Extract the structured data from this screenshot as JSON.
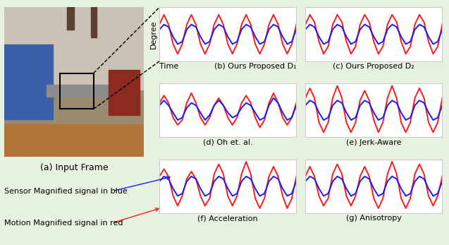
{
  "panel_a": {
    "caption": "(a) Input Frame"
  },
  "legend_notes": [
    {
      "text": "Sensor Magnified signal in blue",
      "color": "#1a1aff"
    },
    {
      "text": "Motion Magnified signal in red",
      "color": "#ff1a1a"
    }
  ],
  "chart_data": [
    {
      "type": "line",
      "title": "(b) Ours Proposed D₁",
      "x_label": "Time",
      "y_label": "Degree",
      "x": [
        0,
        1,
        2,
        3,
        4,
        5,
        6,
        7,
        8,
        9,
        10,
        11,
        12,
        13,
        14,
        15,
        16,
        17,
        18,
        19,
        20,
        21,
        22,
        23,
        24,
        25,
        26,
        27,
        28,
        29,
        30
      ],
      "xlim": [
        0,
        30
      ],
      "ylim": [
        -11,
        11
      ],
      "tick_labels": false,
      "series": [
        {
          "color": "#ff1a1a",
          "values": [
            4,
            8,
            4,
            -4,
            -8,
            -4,
            4,
            8,
            4,
            -4,
            -8,
            -4,
            4,
            8,
            4,
            -4,
            -8,
            -4,
            4,
            8,
            4,
            -4,
            -8,
            -4,
            4,
            8,
            4,
            -4,
            -8,
            -4,
            4
          ]
        },
        {
          "color": "#1a1aff",
          "values": [
            2,
            4,
            3,
            -1,
            -4,
            -3,
            2,
            4,
            3,
            -1,
            -4,
            -3,
            2,
            4,
            3,
            -1,
            -4,
            -3,
            2,
            4,
            3,
            -1,
            -4,
            -3,
            2,
            4,
            3,
            -1,
            -4,
            -3,
            2
          ]
        }
      ]
    },
    {
      "type": "line",
      "title": "(c) Ours Proposed D₂",
      "x": [
        0,
        1,
        2,
        3,
        4,
        5,
        6,
        7,
        8,
        9,
        10,
        11,
        12,
        13,
        14,
        15,
        16,
        17,
        18,
        19,
        20,
        21,
        22,
        23,
        24,
        25,
        26,
        27,
        28,
        29,
        30
      ],
      "xlim": [
        0,
        30
      ],
      "ylim": [
        -11,
        11
      ],
      "tick_labels": false,
      "series": [
        {
          "color": "#ff1a1a",
          "values": [
            4,
            8,
            5,
            -3,
            -8,
            -5,
            4,
            8,
            5,
            -3,
            -8,
            -5,
            4,
            8,
            5,
            -3,
            -8,
            -5,
            4,
            8,
            5,
            -3,
            -8,
            -5,
            4,
            8,
            5,
            -3,
            -8,
            -5,
            4
          ]
        },
        {
          "color": "#1a1aff",
          "values": [
            2,
            4,
            3,
            -1,
            -4,
            -3,
            2,
            4,
            3,
            -1,
            -4,
            -3,
            2,
            4,
            3,
            -1,
            -4,
            -3,
            2,
            4,
            3,
            -1,
            -4,
            -3,
            2,
            4,
            3,
            -1,
            -4,
            -3,
            2
          ]
        }
      ]
    },
    {
      "type": "line",
      "title": "(d) Oh et. al.",
      "x": [
        0,
        1,
        2,
        3,
        4,
        5,
        6,
        7,
        8,
        9,
        10,
        11,
        12,
        13,
        14,
        15,
        16,
        17,
        18,
        19,
        20,
        21,
        22,
        23,
        24,
        25,
        26,
        27,
        28,
        29,
        30
      ],
      "xlim": [
        0,
        30
      ],
      "ylim": [
        -11,
        11
      ],
      "tick_labels": false,
      "series": [
        {
          "color": "#ff1a1a",
          "values": [
            3,
            6,
            3,
            -3,
            -6,
            -4,
            3,
            7,
            3,
            -3,
            -6,
            -3,
            2,
            5,
            2,
            -3,
            -6,
            -3,
            3,
            6,
            3,
            -3,
            -7,
            -4,
            3,
            7,
            3,
            -3,
            -6,
            -3,
            3
          ]
        },
        {
          "color": "#1a1aff",
          "values": [
            2,
            4,
            2,
            -1,
            -4,
            -3,
            1,
            3,
            2,
            -1,
            -4,
            -2,
            2,
            4,
            2,
            -1,
            -3,
            -2,
            1,
            3,
            2,
            -1,
            -4,
            -3,
            2,
            5,
            3,
            -1,
            -4,
            -3,
            2
          ]
        }
      ]
    },
    {
      "type": "line",
      "title": "(e) Jerk-Aware",
      "x": [
        0,
        1,
        2,
        3,
        4,
        5,
        6,
        7,
        8,
        9,
        10,
        11,
        12,
        13,
        14,
        15,
        16,
        17,
        18,
        19,
        20,
        21,
        22,
        23,
        24,
        25,
        26,
        27,
        28,
        29,
        30
      ],
      "xlim": [
        0,
        30
      ],
      "ylim": [
        -11,
        11
      ],
      "tick_labels": false,
      "series": [
        {
          "color": "#ff1a1a",
          "values": [
            5,
            9,
            5,
            -5,
            -9,
            -5,
            5,
            10,
            5,
            -5,
            -9,
            -5,
            4,
            8,
            4,
            -4,
            -9,
            -5,
            5,
            10,
            5,
            -5,
            -9,
            -5,
            5,
            9,
            5,
            -5,
            -9,
            -5,
            5
          ]
        },
        {
          "color": "#1a1aff",
          "values": [
            2,
            4,
            3,
            -1,
            -4,
            -3,
            2,
            4,
            3,
            -1,
            -4,
            -3,
            2,
            4,
            3,
            -1,
            -4,
            -3,
            2,
            4,
            3,
            -1,
            -4,
            -3,
            2,
            4,
            3,
            -1,
            -4,
            -3,
            2
          ]
        }
      ]
    },
    {
      "type": "line",
      "title": "(f) Acceleration",
      "x": [
        0,
        1,
        2,
        3,
        4,
        5,
        6,
        7,
        8,
        9,
        10,
        11,
        12,
        13,
        14,
        15,
        16,
        17,
        18,
        19,
        20,
        21,
        22,
        23,
        24,
        25,
        26,
        27,
        28,
        29,
        30
      ],
      "xlim": [
        0,
        30
      ],
      "ylim": [
        -11,
        11
      ],
      "tick_labels": false,
      "series": [
        {
          "color": "#ff1a1a",
          "values": [
            4,
            7,
            4,
            -4,
            -8,
            -4,
            3,
            6,
            3,
            -4,
            -8,
            -5,
            5,
            9,
            5,
            -4,
            -8,
            -4,
            5,
            10,
            5,
            -5,
            -9,
            -5,
            4,
            8,
            4,
            -4,
            -9,
            -5,
            4
          ]
        },
        {
          "color": "#1a1aff",
          "values": [
            2,
            4,
            3,
            -1,
            -4,
            -3,
            2,
            4,
            3,
            -1,
            -4,
            -3,
            2,
            4,
            3,
            -1,
            -4,
            -3,
            2,
            4,
            3,
            -1,
            -4,
            -3,
            2,
            4,
            3,
            -1,
            -4,
            -3,
            2
          ]
        }
      ]
    },
    {
      "type": "line",
      "title": "(g) Anisotropy",
      "x": [
        0,
        1,
        2,
        3,
        4,
        5,
        6,
        7,
        8,
        9,
        10,
        11,
        12,
        13,
        14,
        15,
        16,
        17,
        18,
        19,
        20,
        21,
        22,
        23,
        24,
        25,
        26,
        27,
        28,
        29,
        30
      ],
      "xlim": [
        0,
        30
      ],
      "ylim": [
        -11,
        11
      ],
      "tick_labels": false,
      "series": [
        {
          "color": "#ff1a1a",
          "values": [
            4,
            8,
            4,
            -4,
            -8,
            -5,
            5,
            9,
            5,
            -4,
            -8,
            -4,
            4,
            8,
            4,
            -5,
            -9,
            -5,
            5,
            10,
            5,
            -5,
            -9,
            -5,
            5,
            9,
            5,
            -4,
            -8,
            -4,
            4
          ]
        },
        {
          "color": "#1a1aff",
          "values": [
            2,
            4,
            3,
            -1,
            -4,
            -3,
            2,
            4,
            3,
            -1,
            -4,
            -3,
            2,
            4,
            3,
            -1,
            -4,
            -3,
            2,
            4,
            3,
            -1,
            -4,
            -3,
            2,
            4,
            3,
            -1,
            -4,
            -3,
            2
          ]
        }
      ]
    }
  ]
}
